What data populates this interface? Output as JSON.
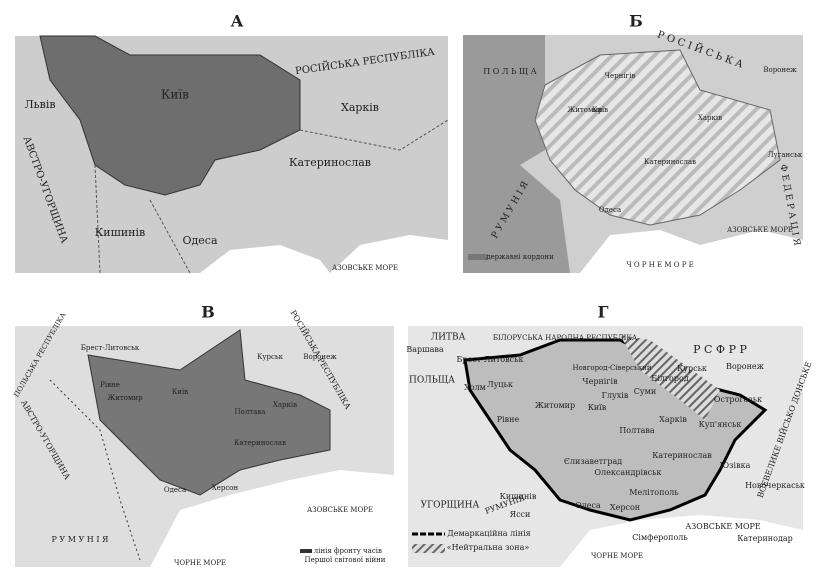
{
  "maps": [
    {
      "label": "А",
      "places": [
        "Київ",
        "РОСІЙСЬКА РЕСПУБЛІКА",
        "Харків",
        "Катеринослав",
        "Львів",
        "АВСТРО-УГОРЩИНА",
        "Кишинів",
        "Одеса",
        "АЗОВСЬКЕ МОРЕ"
      ]
    },
    {
      "label": "Б",
      "places": [
        "П О Л Ь Щ А",
        "Р О С І Й С Ь К А",
        "Р У М У Н І Я",
        "державні кордони",
        "АЗОВСЬКЕ МОРЕ",
        "Ч О Р Н Е   М О Р Е",
        "Київ",
        "Харків",
        "Катеринослав",
        "Одеса",
        "Воронеж",
        "Луганськ",
        "Житомир",
        "Чернігів",
        "Ф Е Д Е Р А Ц І Я"
      ]
    },
    {
      "label": "В",
      "places": [
        "Брест-Литовськ",
        "РОСІЙСЬКА РЕСПУБЛІКА",
        "Курськ",
        "Воронеж",
        "Київ",
        "Житомир",
        "Полтава",
        "Катеринослав",
        "Херсон",
        "Одеса",
        "АВСТРО-УГОРЩИНА",
        "Р У М У Н І Я",
        "АЗОВСЬКЕ МОРЕ",
        "ЧОРНЕ МОРЕ",
        "– лінія фронту часів",
        "Першої світової війни",
        "ПОЛЬСЬКА РЕСПУБЛІКА",
        "Рівне",
        "Харків"
      ]
    },
    {
      "label": "Г",
      "places": [
        "ЛИТВА",
        "БІЛОРУСЬКА НАРОДНА РЕСПУБЛІКА",
        "Р С Ф Р Р",
        "Варшава",
        "ПОЛЬЩА",
        "Брест-Литовськ",
        "Новгород-Сіверський",
        "Чернігів",
        "Глухів",
        "Курськ",
        "Воронеж",
        "Житомир",
        "Київ",
        "Суми",
        "Білгород",
        "Харків",
        "Полтава",
        "Рівне",
        "Луцьк",
        "Холм",
        "Єлизаветград",
        "Катеринослав",
        "Олександрівськ",
        "Мелітополь",
        "Херсон",
        "Одеса",
        "Кишинів",
        "Ясси",
        "УГОРЩИНА",
        "РУМУНІЯ",
        "АЗОВСЬКЕ МОРЕ",
        "ЧОРНЕ МОРЕ",
        "Сімферополь",
        "Катеринодар",
        "Новочеркаськ",
        "Юзівка",
        "Куп'янськ",
        "Острогозьк",
        "Демаркаційна лінія",
        "«Нейтральна зона»",
        "ВСЕВЕЛИКЕ ВІЙСЬКО ДОНСЬКЕ"
      ]
    }
  ]
}
